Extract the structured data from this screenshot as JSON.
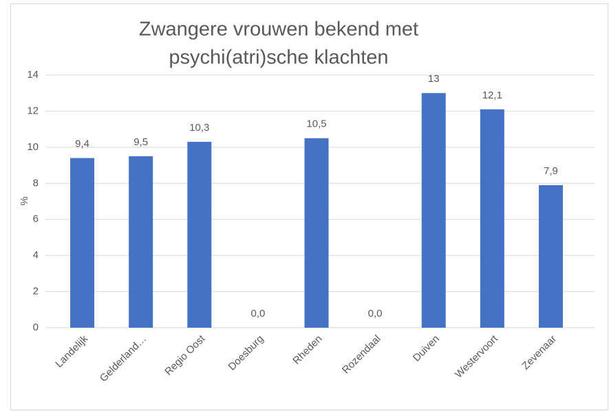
{
  "chart_data": {
    "type": "bar",
    "title": [
      "Zwangere vrouwen bekend met",
      "psychi(atri)sche klachten"
    ],
    "y_label": "%",
    "categories": [
      "Landelijk",
      "Gelderland…",
      "Regio Oost",
      "Doesburg",
      "Rheden",
      "Rozendaal",
      "Duiven",
      "Westervoort",
      "Zevenaar"
    ],
    "values": [
      9.4,
      9.5,
      10.3,
      0,
      10.5,
      0,
      13,
      12.1,
      7.9
    ],
    "value_labels": [
      "9,4",
      "9,5",
      "10,3",
      "0,0",
      "10,5",
      "0,0",
      "13",
      "12,1",
      "7,9"
    ],
    "color": "#4472c4",
    "ylim": [
      0,
      14
    ],
    "yticks": [
      0,
      2,
      4,
      6,
      8,
      10,
      12,
      14
    ],
    "grid": true
  }
}
